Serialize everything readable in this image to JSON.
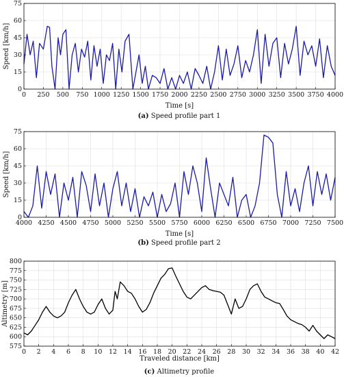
{
  "chart_data": [
    {
      "type": "line",
      "caption_tag": "(a)",
      "caption_text": "Speed profile part 1",
      "xlabel": "Time [s]",
      "ylabel": "Speed [km/h]",
      "xlim": [
        0,
        4000
      ],
      "ylim": [
        0,
        75
      ],
      "xticks": [
        0,
        250,
        500,
        750,
        1000,
        1250,
        1500,
        1750,
        2000,
        2250,
        2500,
        2750,
        3000,
        3250,
        3500,
        3750,
        4000
      ],
      "yticks": [
        0,
        15,
        30,
        45,
        60,
        75
      ],
      "grid": true,
      "series": [
        {
          "color": "#1a1aa6",
          "x": [
            0,
            40,
            80,
            120,
            160,
            200,
            250,
            300,
            330,
            360,
            400,
            440,
            470,
            500,
            540,
            580,
            620,
            660,
            700,
            740,
            780,
            820,
            860,
            900,
            940,
            980,
            1020,
            1060,
            1100,
            1140,
            1180,
            1220,
            1260,
            1300,
            1350,
            1400,
            1440,
            1480,
            1520,
            1560,
            1600,
            1650,
            1700,
            1750,
            1800,
            1850,
            1900,
            1950,
            2000,
            2050,
            2100,
            2150,
            2200,
            2250,
            2300,
            2350,
            2400,
            2450,
            2500,
            2550,
            2600,
            2650,
            2700,
            2750,
            2800,
            2850,
            2900,
            2950,
            3000,
            3050,
            3100,
            3150,
            3200,
            3250,
            3300,
            3350,
            3400,
            3450,
            3500,
            3550,
            3600,
            3650,
            3700,
            3750,
            3800,
            3850,
            3900,
            3950,
            4000
          ],
          "y": [
            22,
            48,
            30,
            42,
            10,
            40,
            35,
            55,
            54,
            20,
            0,
            45,
            30,
            48,
            52,
            0,
            30,
            40,
            15,
            35,
            28,
            42,
            8,
            38,
            20,
            35,
            5,
            30,
            25,
            40,
            0,
            35,
            15,
            42,
            48,
            0,
            15,
            30,
            5,
            20,
            0,
            12,
            10,
            5,
            18,
            0,
            10,
            0,
            12,
            5,
            15,
            0,
            18,
            12,
            5,
            20,
            0,
            15,
            38,
            8,
            35,
            12,
            22,
            38,
            10,
            25,
            15,
            30,
            52,
            5,
            48,
            20,
            40,
            45,
            10,
            40,
            22,
            35,
            55,
            12,
            42,
            30,
            38,
            20,
            44,
            10,
            38,
            20,
            12
          ]
        }
      ]
    },
    {
      "type": "line",
      "caption_tag": "(b)",
      "caption_text": "Speed profile part 2",
      "xlabel": "Time [s]",
      "ylabel": "Speed [km/h]",
      "xlim": [
        4000,
        7500
      ],
      "ylim": [
        0,
        75
      ],
      "xticks": [
        4000,
        4250,
        4500,
        4750,
        5000,
        5250,
        5500,
        5750,
        6000,
        6250,
        6500,
        6750,
        7000,
        7250,
        7500
      ],
      "yticks": [
        0,
        15,
        30,
        45,
        60,
        75
      ],
      "grid": true,
      "series": [
        {
          "color": "#1a1aa6",
          "x": [
            4000,
            4050,
            4100,
            4150,
            4200,
            4250,
            4300,
            4350,
            4400,
            4450,
            4500,
            4550,
            4600,
            4650,
            4700,
            4750,
            4800,
            4850,
            4900,
            4950,
            5000,
            5050,
            5100,
            5150,
            5200,
            5250,
            5300,
            5350,
            5400,
            5450,
            5500,
            5550,
            5600,
            5650,
            5700,
            5750,
            5800,
            5850,
            5900,
            5950,
            6000,
            6050,
            6100,
            6150,
            6200,
            6250,
            6300,
            6350,
            6400,
            6450,
            6500,
            6550,
            6600,
            6650,
            6700,
            6750,
            6800,
            6850,
            6900,
            6950,
            7000,
            7050,
            7100,
            7150,
            7200,
            7250,
            7300,
            7350,
            7400,
            7450,
            7500
          ],
          "y": [
            5,
            0,
            10,
            45,
            8,
            40,
            20,
            38,
            0,
            30,
            15,
            35,
            0,
            40,
            28,
            5,
            38,
            10,
            30,
            0,
            25,
            40,
            10,
            30,
            5,
            25,
            0,
            18,
            10,
            22,
            0,
            20,
            5,
            12,
            30,
            0,
            40,
            20,
            45,
            30,
            5,
            52,
            25,
            0,
            30,
            20,
            10,
            35,
            0,
            15,
            20,
            0,
            10,
            30,
            72,
            70,
            65,
            20,
            0,
            40,
            10,
            25,
            5,
            30,
            45,
            10,
            40,
            20,
            38,
            15,
            35
          ]
        }
      ]
    },
    {
      "type": "line",
      "caption_tag": "(c)",
      "caption_text": "Altimetry profile",
      "xlabel": "Traveled distance [km]",
      "ylabel": "Altimetry [m]",
      "xlim": [
        0,
        42
      ],
      "ylim": [
        575,
        800
      ],
      "xticks": [
        0,
        2,
        4,
        6,
        8,
        10,
        12,
        14,
        16,
        18,
        20,
        22,
        24,
        26,
        28,
        30,
        32,
        34,
        36,
        38,
        40,
        42
      ],
      "yticks": [
        575,
        600,
        625,
        650,
        675,
        700,
        725,
        750,
        775,
        800
      ],
      "grid": true,
      "series": [
        {
          "color": "#000000",
          "x": [
            0,
            0.5,
            1,
            1.5,
            2,
            2.5,
            3,
            3.5,
            4,
            4.5,
            5,
            5.5,
            6,
            6.5,
            7,
            7.5,
            8,
            8.5,
            9,
            9.5,
            10,
            10.5,
            11,
            11.5,
            12,
            12.3,
            12.6,
            13,
            13.5,
            14,
            14.5,
            15,
            15.5,
            16,
            16.5,
            17,
            17.5,
            18,
            18.5,
            19,
            19.5,
            20,
            20.5,
            21,
            21.5,
            22,
            22.5,
            23,
            23.5,
            24,
            24.5,
            25,
            25.5,
            26,
            26.5,
            27,
            27.5,
            28,
            28.5,
            29,
            29.5,
            30,
            30.5,
            31,
            31.5,
            32,
            32.5,
            33,
            33.5,
            34,
            34.5,
            35,
            35.5,
            36,
            36.5,
            37,
            37.5,
            38,
            38.5,
            39,
            39.5,
            40,
            40.5,
            41,
            41.5,
            42
          ],
          "y": [
            610,
            605,
            615,
            630,
            645,
            665,
            680,
            665,
            655,
            650,
            655,
            665,
            690,
            710,
            725,
            700,
            680,
            665,
            660,
            665,
            685,
            700,
            675,
            660,
            670,
            720,
            700,
            745,
            735,
            720,
            715,
            700,
            680,
            665,
            672,
            690,
            715,
            735,
            755,
            765,
            780,
            782,
            760,
            740,
            720,
            705,
            700,
            710,
            720,
            730,
            735,
            725,
            722,
            720,
            718,
            710,
            685,
            660,
            700,
            675,
            680,
            700,
            725,
            735,
            740,
            720,
            705,
            700,
            695,
            690,
            688,
            672,
            655,
            645,
            640,
            635,
            632,
            625,
            615,
            630,
            615,
            605,
            595,
            605,
            600,
            595
          ]
        }
      ]
    }
  ]
}
